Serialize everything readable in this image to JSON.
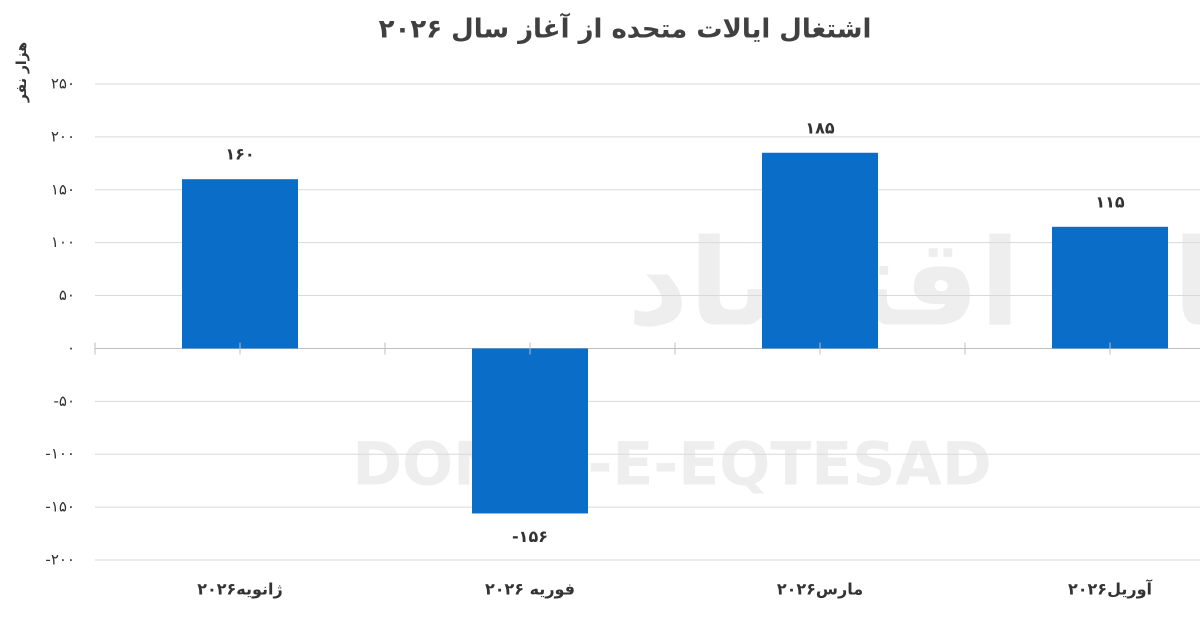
{
  "chart_data": {
    "type": "bar",
    "title": "اشتغال ایالات متحده از آغاز سال ۲۰۲۶",
    "y_axis_label": "هزار نفر",
    "watermark": "DONYA-E-EQTESAD",
    "watermark_fa": "دنیای اقتصاد",
    "categories": [
      "ژانویه۲۰۲۶",
      "فوریه ۲۰۲۶",
      "مارس۲۰۲۶",
      "آوریل۲۰۲۶"
    ],
    "values": [
      160,
      -156,
      185,
      115
    ],
    "value_labels": [
      "۱۶۰",
      "-۱۵۶",
      "۱۸۵",
      "۱۱۵"
    ],
    "color": "#0a6ec8",
    "ylim": [
      -200,
      250
    ],
    "yticks": [
      {
        "value": 250,
        "label": "۲۵۰"
      },
      {
        "value": 200,
        "label": "۲۰۰"
      },
      {
        "value": 150,
        "label": "۱۵۰"
      },
      {
        "value": 100,
        "label": "۱۰۰"
      },
      {
        "value": 50,
        "label": "۵۰"
      },
      {
        "value": 0,
        "label": "۰"
      },
      {
        "value": -50,
        "label": "-۵۰"
      },
      {
        "value": -100,
        "label": "-۱۰۰"
      },
      {
        "value": -150,
        "label": "-۱۵۰"
      },
      {
        "value": -200,
        "label": "-۲۰۰"
      }
    ],
    "grid": true
  }
}
